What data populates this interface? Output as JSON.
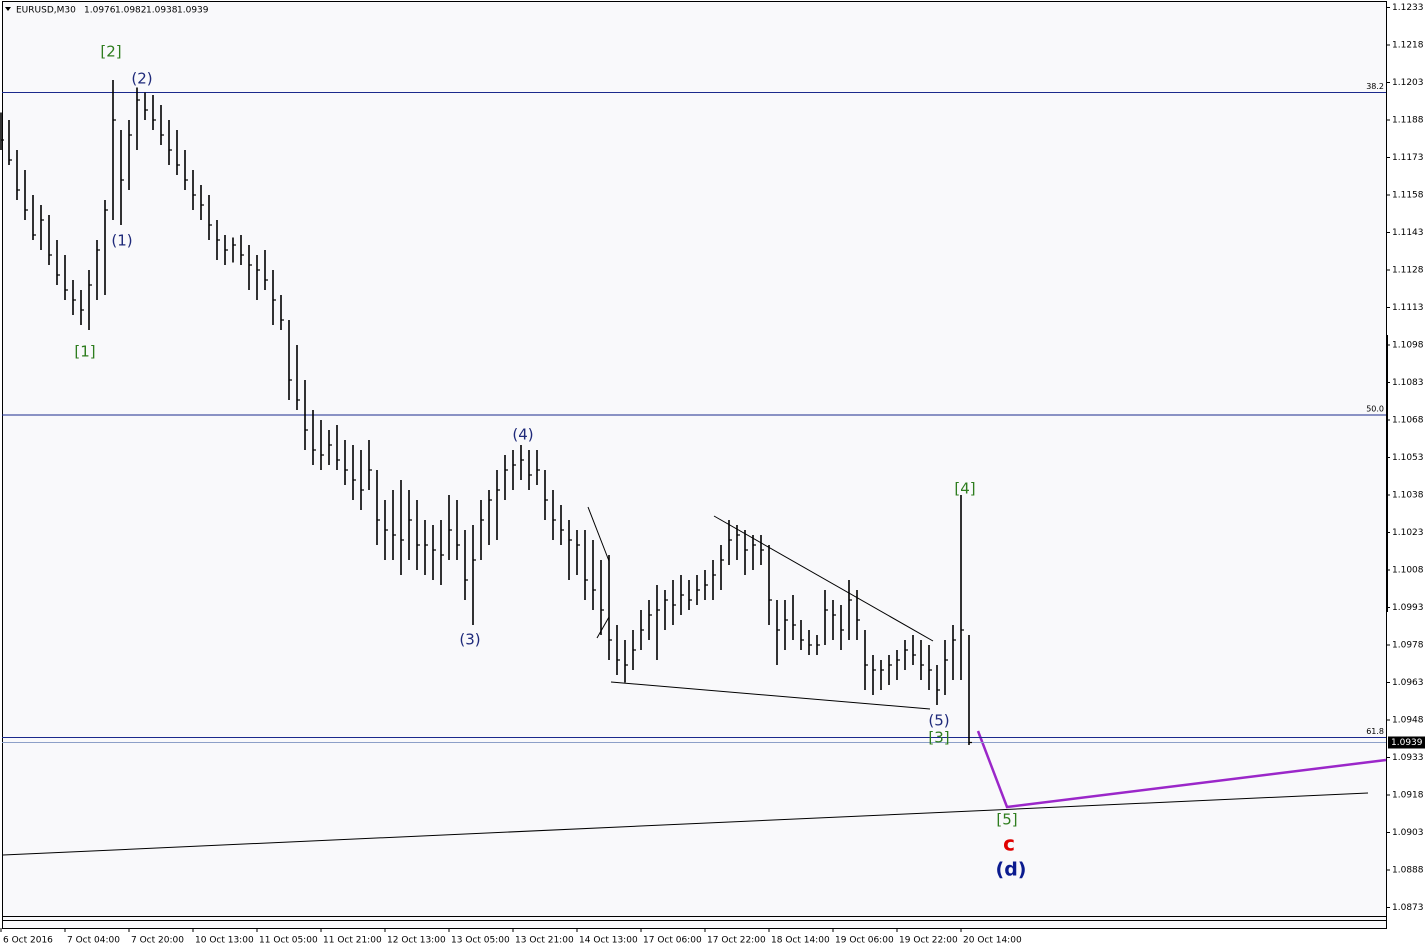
{
  "header": {
    "symbol": "EURUSD,M30",
    "open": 1.0976,
    "high": 1.0982,
    "low": 1.0938,
    "close": 1.0939
  },
  "chart_data": {
    "type": "ohlc",
    "color": "#000000",
    "categories": [
      "6 Oct 2016",
      null,
      null,
      null,
      null,
      null,
      null,
      null,
      "7 Oct 04:00",
      null,
      null,
      null,
      null,
      null,
      null,
      null,
      "7 Oct 20:00",
      null,
      null,
      null,
      null,
      null,
      null,
      null,
      "10 Oct 13:00",
      null,
      null,
      null,
      null,
      null,
      null,
      null,
      "11 Oct 05:00",
      null,
      null,
      null,
      null,
      null,
      null,
      null,
      "11 Oct 21:00",
      null,
      null,
      null,
      null,
      null,
      null,
      null,
      "12 Oct 13:00",
      null,
      null,
      null,
      null,
      null,
      null,
      null,
      "13 Oct 05:00",
      null,
      null,
      null,
      null,
      null,
      null,
      null,
      "13 Oct 21:00",
      null,
      null,
      null,
      null,
      null,
      null,
      null,
      "14 Oct 13:00",
      null,
      null,
      null,
      null,
      null,
      null,
      null,
      "17 Oct 06:00",
      null,
      null,
      null,
      null,
      null,
      null,
      null,
      "17 Oct 22:00",
      null,
      null,
      null,
      null,
      null,
      null,
      null,
      "18 Oct 14:00",
      null,
      null,
      null,
      null,
      null,
      null,
      null,
      "19 Oct 06:00",
      null,
      null,
      null,
      null,
      null,
      null,
      null,
      "19 Oct 22:00",
      null,
      null,
      null,
      null,
      null,
      null,
      null,
      "20 Oct 14:00",
      null
    ],
    "high": [
      1.1191,
      1.1188,
      1.1176,
      1.1168,
      1.1158,
      1.1154,
      1.115,
      1.114,
      1.1134,
      1.1124,
      1.112,
      1.1128,
      1.114,
      1.1156,
      1.1204,
      1.1184,
      1.1188,
      1.1201,
      1.1199,
      1.1198,
      1.1194,
      1.1188,
      1.1184,
      1.1176,
      1.1168,
      1.1162,
      1.1158,
      1.1148,
      1.1142,
      1.1141,
      1.1142,
      1.1138,
      1.1134,
      1.1136,
      1.1128,
      1.1118,
      1.1108,
      1.1098,
      1.1084,
      1.1072,
      1.1068,
      1.1064,
      1.1066,
      1.106,
      1.1058,
      1.1056,
      1.106,
      1.1048,
      1.1036,
      1.104,
      1.1044,
      1.104,
      1.1036,
      1.1028,
      1.1026,
      1.1028,
      1.1038,
      1.1036,
      1.1024,
      1.1026,
      1.1036,
      1.104,
      1.1048,
      1.1054,
      1.1056,
      1.1058,
      1.1056,
      1.1056,
      1.1048,
      1.104,
      1.1034,
      1.1028,
      1.1024,
      1.1024,
      1.102,
      1.1012,
      1.1014,
      1.0986,
      1.098,
      1.0984,
      1.0992,
      1.0996,
      1.1002,
      1.1,
      1.1004,
      1.1006,
      1.1004,
      1.1006,
      1.1008,
      1.1012,
      1.1018,
      1.1028,
      1.1026,
      1.1024,
      1.1022,
      1.1022,
      1.1018,
      1.0996,
      1.0996,
      1.0998,
      1.0988,
      1.0984,
      1.0982,
      1.1,
      1.0996,
      1.0994,
      1.1004,
      1.1,
      1.0984,
      1.0974,
      1.0972,
      1.0974,
      1.0976,
      1.098,
      1.0982,
      1.098,
      1.0978,
      1.097,
      1.098,
      1.0986,
      1.1038,
      1.0982
    ],
    "low": [
      1.1176,
      1.117,
      1.1156,
      1.1148,
      1.114,
      1.1136,
      1.113,
      1.1122,
      1.1116,
      1.111,
      1.1106,
      1.1104,
      1.1116,
      1.1118,
      1.1148,
      1.1146,
      1.116,
      1.1176,
      1.1188,
      1.1184,
      1.1178,
      1.117,
      1.1166,
      1.116,
      1.1152,
      1.1148,
      1.114,
      1.1132,
      1.113,
      1.1131,
      1.113,
      1.112,
      1.1116,
      1.112,
      1.1106,
      1.1104,
      1.1076,
      1.1072,
      1.1056,
      1.105,
      1.1048,
      1.105,
      1.1048,
      1.1042,
      1.1036,
      1.1032,
      1.104,
      1.1018,
      1.1012,
      1.1012,
      1.1006,
      1.1012,
      1.1008,
      1.1006,
      1.1004,
      1.1002,
      1.1012,
      1.1012,
      1.0996,
      1.0986,
      1.1012,
      1.1018,
      1.102,
      1.1036,
      1.104,
      1.1044,
      1.104,
      1.1042,
      1.1028,
      1.102,
      1.1018,
      1.1004,
      1.1006,
      1.0996,
      1.0992,
      1.0982,
      1.0972,
      1.0966,
      1.0963,
      1.0968,
      1.0976,
      1.098,
      1.0972,
      1.0984,
      1.0986,
      1.099,
      1.0992,
      1.0994,
      1.0996,
      1.0996,
      1.1,
      1.101,
      1.1012,
      1.1006,
      1.1008,
      1.101,
      1.0986,
      1.097,
      1.0976,
      1.098,
      1.0976,
      1.0974,
      1.0974,
      1.0978,
      1.098,
      1.0976,
      1.098,
      1.098,
      1.096,
      1.0958,
      1.096,
      1.0962,
      1.0964,
      1.0968,
      1.097,
      1.0964,
      1.096,
      1.0954,
      1.0958,
      1.0964,
      1.0964,
      1.0938
    ],
    "close": [
      1.118,
      1.1172,
      1.116,
      1.1152,
      1.1142,
      1.1148,
      1.1134,
      1.1126,
      1.112,
      1.1116,
      1.1112,
      1.1122,
      1.1136,
      1.1152,
      1.1188,
      1.1164,
      1.1182,
      1.1196,
      1.1192,
      1.1188,
      1.1182,
      1.1176,
      1.117,
      1.1164,
      1.1158,
      1.1154,
      1.1146,
      1.114,
      1.1136,
      1.1138,
      1.1134,
      1.113,
      1.1128,
      1.1124,
      1.1116,
      1.1108,
      1.1084,
      1.1076,
      1.1064,
      1.1056,
      1.1054,
      1.1058,
      1.1052,
      1.1048,
      1.1044,
      1.104,
      1.1048,
      1.1028,
      1.1024,
      1.1022,
      1.102,
      1.1028,
      1.1018,
      1.1018,
      1.1016,
      1.1014,
      1.1024,
      1.1018,
      1.1004,
      1.1012,
      1.1028,
      1.1036,
      1.104,
      1.1048,
      1.105,
      1.1052,
      1.1046,
      1.1048,
      1.1036,
      1.1028,
      1.1024,
      1.102,
      1.1018,
      1.1004,
      1.1,
      1.0992,
      1.098,
      1.0972,
      1.097,
      1.0976,
      1.0984,
      1.099,
      1.0992,
      1.0996,
      1.0994,
      1.0998,
      1.0996,
      1.1,
      1.1002,
      1.1006,
      1.1012,
      1.102,
      1.1022,
      1.1016,
      1.1018,
      1.1016,
      1.0996,
      1.0984,
      1.0988,
      1.0986,
      1.098,
      1.0978,
      1.0978,
      1.0992,
      1.099,
      1.0984,
      1.0996,
      1.0988,
      1.097,
      1.0968,
      1.0968,
      1.097,
      1.0972,
      1.0976,
      1.0974,
      1.097,
      1.0968,
      1.096,
      1.0972,
      1.098,
      1.0984,
      1.0939
    ],
    "ylim": [
      1.0868,
      1.1236
    ],
    "yticks": [
      1.1233,
      1.1218,
      1.1203,
      1.1188,
      1.1173,
      1.1158,
      1.1143,
      1.1128,
      1.1113,
      1.1098,
      1.1083,
      1.1068,
      1.1053,
      1.1038,
      1.1023,
      1.1008,
      1.0993,
      1.0978,
      1.0963,
      1.0948,
      1.0933,
      1.0918,
      1.0903,
      1.0888,
      1.0873
    ],
    "fib_levels": [
      {
        "label": "38.2",
        "value": 1.1199
      },
      {
        "label": "50.0",
        "value": 1.107
      },
      {
        "label": "61.8",
        "value": 1.0941
      }
    ],
    "current_price": 1.0939,
    "wave_labels": [
      "[2]",
      "(2)",
      "(1)",
      "[1]",
      "(4)",
      "(3)",
      "[4]",
      "(5)",
      "[3]",
      "[5]",
      "c",
      "(d)"
    ]
  }
}
